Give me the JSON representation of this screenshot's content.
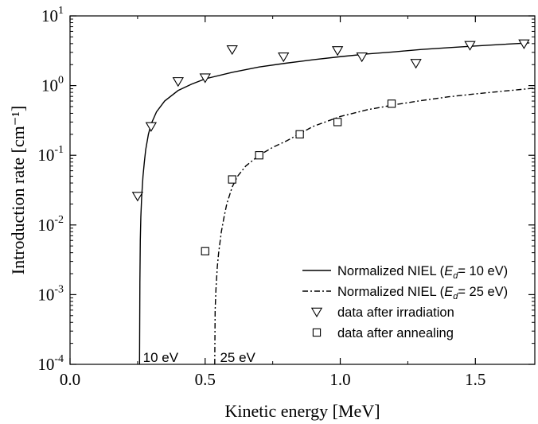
{
  "chart_data": {
    "type": "scatter",
    "title": "",
    "xlabel": "Kinetic energy [MeV]",
    "ylabel": "Introduction rate [cm⁻¹]",
    "xlim": [
      0.0,
      1.72
    ],
    "ylim": [
      0.0001,
      10
    ],
    "y_scale": "log",
    "x_ticks": [
      0.0,
      0.5,
      1.0,
      1.5
    ],
    "x_tick_labels": [
      "0.0",
      "0.5",
      "1.0",
      "1.5"
    ],
    "y_ticks": [
      {
        "value": 0.0001,
        "base": "10",
        "exp": "-4"
      },
      {
        "value": 0.001,
        "base": "10",
        "exp": "-3"
      },
      {
        "value": 0.01,
        "base": "10",
        "exp": "-2"
      },
      {
        "value": 0.1,
        "base": "10",
        "exp": "-1"
      },
      {
        "value": 1,
        "base": "10",
        "exp": "0"
      },
      {
        "value": 10,
        "base": "10",
        "exp": "1"
      }
    ],
    "grid": false,
    "legend_position": "bottom-right",
    "legend": [
      {
        "label_pre": "Normalized NIEL (",
        "label_sym": "E",
        "label_sub": "d",
        "label_post": "= 10 eV)",
        "style": "solid-line"
      },
      {
        "label_pre": "Normalized NIEL (",
        "label_sym": "E",
        "label_sub": "d",
        "label_post": "= 25 eV)",
        "style": "dash-dot-line"
      },
      {
        "label_pre": "data after irradiation",
        "style": "open-triangle-down"
      },
      {
        "label_pre": "data after annealing",
        "style": "open-square"
      }
    ],
    "annotations": [
      {
        "text": "10 eV",
        "x": 0.27,
        "y": 0.00013
      },
      {
        "text": "25 eV",
        "x": 0.555,
        "y": 0.00013
      }
    ],
    "series": [
      {
        "style": "solid-line",
        "x": [
          0.2572,
          0.2585,
          0.26,
          0.262,
          0.265,
          0.27,
          0.275,
          0.28,
          0.29,
          0.3,
          0.32,
          0.35,
          0.4,
          0.45,
          0.5,
          0.6,
          0.7,
          0.8,
          0.9,
          1.0,
          1.1,
          1.2,
          1.3,
          1.4,
          1.5,
          1.6,
          1.7
        ],
        "y": [
          0.0001,
          0.0015,
          0.006,
          0.013,
          0.025,
          0.05,
          0.08,
          0.12,
          0.2,
          0.28,
          0.42,
          0.6,
          0.85,
          1.05,
          1.25,
          1.55,
          1.85,
          2.1,
          2.35,
          2.6,
          2.85,
          3.05,
          3.3,
          3.5,
          3.7,
          3.9,
          4.1
        ]
      },
      {
        "style": "dash-dot-line",
        "x": [
          0.5355,
          0.537,
          0.54,
          0.545,
          0.55,
          0.56,
          0.57,
          0.58,
          0.6,
          0.62,
          0.65,
          0.7,
          0.75,
          0.8,
          0.9,
          1.0,
          1.1,
          1.2,
          1.3,
          1.4,
          1.5,
          1.6,
          1.72
        ],
        "y": [
          0.0001,
          0.0006,
          0.0012,
          0.0025,
          0.004,
          0.008,
          0.013,
          0.02,
          0.035,
          0.05,
          0.07,
          0.1,
          0.13,
          0.16,
          0.26,
          0.36,
          0.45,
          0.53,
          0.61,
          0.69,
          0.76,
          0.83,
          0.92
        ]
      },
      {
        "name": "data after irradiation",
        "style": "open-triangle-down",
        "x": [
          0.25,
          0.3,
          0.4,
          0.5,
          0.6,
          0.79,
          0.99,
          1.08,
          1.28,
          1.48,
          1.68
        ],
        "y": [
          0.026,
          0.26,
          1.15,
          1.3,
          3.3,
          2.6,
          3.2,
          2.6,
          2.1,
          3.8,
          4.0
        ]
      },
      {
        "name": "data after annealing",
        "style": "open-square",
        "x": [
          0.5,
          0.6,
          0.7,
          0.85,
          0.99,
          1.19
        ],
        "y": [
          0.0042,
          0.045,
          0.1,
          0.2,
          0.3,
          0.55
        ]
      }
    ]
  }
}
